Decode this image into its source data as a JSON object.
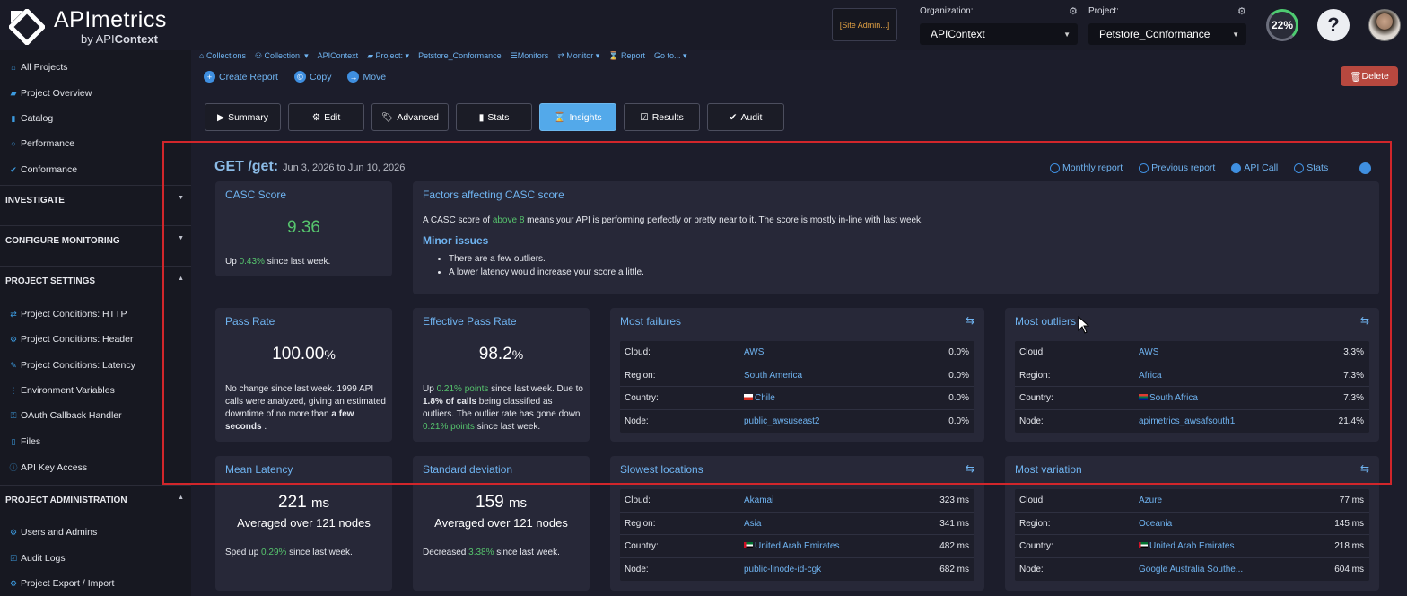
{
  "brand": {
    "name": "APImetrics",
    "sub_prefix": "by API",
    "sub_bold": "Context"
  },
  "topbar": {
    "site_admin": "[Site Admin...]",
    "org_label": "Organization:",
    "org_value": "APIContext",
    "project_label": "Project:",
    "project_value": "Petstore_Conformance",
    "score_pct": "22%",
    "help": "?"
  },
  "sidebar": {
    "top_items": [
      {
        "label": "All Projects",
        "icon": "home-icon"
      },
      {
        "label": "Project Overview",
        "icon": "folder-icon"
      },
      {
        "label": "Catalog",
        "icon": "book-icon"
      },
      {
        "label": "Performance",
        "icon": "circle-icon"
      },
      {
        "label": "Conformance",
        "icon": "check-icon"
      }
    ],
    "sections": {
      "investigate": "INVESTIGATE",
      "configure": "CONFIGURE MONITORING",
      "settings": "PROJECT SETTINGS",
      "admin": "PROJECT ADMINISTRATION"
    },
    "settings_items": [
      {
        "label": "Project Conditions: HTTP",
        "icon": "arrows-icon"
      },
      {
        "label": "Project Conditions: Header",
        "icon": "gear-icon"
      },
      {
        "label": "Project Conditions: Latency",
        "icon": "wrench-icon"
      },
      {
        "label": "Environment Variables",
        "icon": "variable-icon"
      },
      {
        "label": "OAuth Callback Handler",
        "icon": "key-icon"
      },
      {
        "label": "Files",
        "icon": "file-icon"
      },
      {
        "label": "API Key Access",
        "icon": "info-icon"
      }
    ],
    "admin_items": [
      {
        "label": "Users and Admins",
        "icon": "gear-icon"
      },
      {
        "label": "Audit Logs",
        "icon": "checkbox-icon"
      },
      {
        "label": "Project Export / Import",
        "icon": "gear-icon"
      }
    ]
  },
  "breadcrumbs": [
    "Collections",
    "Collection: ▾",
    "APIContext",
    "Project: ▾",
    "Petstore_Conformance",
    "Monitors",
    "Monitor ▾",
    "Report",
    "Go to... ▾"
  ],
  "actions": {
    "create": "Create Report",
    "copy": "Copy",
    "move": "Move",
    "delete": "Delete"
  },
  "tabs": [
    {
      "label": "Summary",
      "icon": "▶"
    },
    {
      "label": "Edit",
      "icon": "⚙"
    },
    {
      "label": "Advanced",
      "icon": "🏷"
    },
    {
      "label": "Stats",
      "icon": "▮"
    },
    {
      "label": "Insights",
      "icon": "⌛"
    },
    {
      "label": "Results",
      "icon": "☑"
    },
    {
      "label": "Audit",
      "icon": "✔"
    }
  ],
  "insights": {
    "title": "GET /get:",
    "date_range": "Jun 3, 2026 to Jun 10, 2026",
    "links": [
      "Monthly report",
      "Previous report",
      "API Call",
      "Stats"
    ],
    "casc": {
      "title": "CASC Score",
      "value": "9.36",
      "change_pre": "Up ",
      "change_val": "0.43%",
      "change_post": " since last week."
    },
    "factors": {
      "title": "Factors affecting CASC score",
      "text_pre": "A CASC score of ",
      "text_hl": "above 8",
      "text_post": " means your API is performing perfectly or pretty near to it. The score is mostly in-line with last week.",
      "minor_title": "Minor issues",
      "bullets": [
        "There are a few outliers.",
        "A lower latency would increase your score a little."
      ]
    },
    "pass_rate": {
      "title": "Pass Rate",
      "value": "100.00",
      "unit": "%",
      "text": "No change since last week. 1999 API calls were analyzed, giving an estimated downtime of no more than",
      "text_bold": "a few seconds",
      "text_end": " ."
    },
    "effective": {
      "title": "Effective Pass Rate",
      "value": "98.2",
      "unit": "%",
      "t1": "Up ",
      "t1_hl": "0.21% points",
      "t2": " since last week. Due to ",
      "t2_bold": "1.8% of calls",
      "t3": " being classified as outliers. The outlier rate has gone down ",
      "t3_hl": "0.21% points",
      "t4": " since last week."
    },
    "most_failures": {
      "title": "Most failures",
      "rows": [
        {
          "key": "Cloud:",
          "value": "AWS",
          "pct": "0.0%",
          "flag": ""
        },
        {
          "key": "Region:",
          "value": "South America",
          "pct": "0.0%",
          "flag": ""
        },
        {
          "key": "Country:",
          "value": "Chile",
          "pct": "0.0%",
          "flag": "chile"
        },
        {
          "key": "Node:",
          "value": "public_awsuseast2",
          "pct": "0.0%",
          "flag": ""
        }
      ]
    },
    "most_outliers": {
      "title": "Most outliers",
      "rows": [
        {
          "key": "Cloud:",
          "value": "AWS",
          "pct": "3.3%",
          "flag": ""
        },
        {
          "key": "Region:",
          "value": "Africa",
          "pct": "7.3%",
          "flag": ""
        },
        {
          "key": "Country:",
          "value": "South Africa",
          "pct": "7.3%",
          "flag": "southafrica"
        },
        {
          "key": "Node:",
          "value": "apimetrics_awsafsouth1",
          "pct": "21.4%",
          "flag": ""
        }
      ]
    },
    "mean_latency": {
      "title": "Mean Latency",
      "value": "221",
      "unit": "ms",
      "sub": "Averaged over 121 nodes",
      "change_pre": "Sped up ",
      "change_val": "0.29%",
      "change_post": " since last week."
    },
    "std_dev": {
      "title": "Standard deviation",
      "value": "159",
      "unit": "ms",
      "sub": "Averaged over 121 nodes",
      "change_pre": "Decreased ",
      "change_val": "3.38%",
      "change_post": " since last week."
    },
    "slowest": {
      "title": "Slowest locations",
      "rows": [
        {
          "key": "Cloud:",
          "value": "Akamai",
          "pct": "323 ms",
          "flag": ""
        },
        {
          "key": "Region:",
          "value": "Asia",
          "pct": "341 ms",
          "flag": ""
        },
        {
          "key": "Country:",
          "value": "United Arab Emirates",
          "pct": "482 ms",
          "flag": "uae"
        },
        {
          "key": "Node:",
          "value": "public-linode-id-cgk",
          "pct": "682 ms",
          "flag": ""
        }
      ]
    },
    "variation": {
      "title": "Most variation",
      "rows": [
        {
          "key": "Cloud:",
          "value": "Azure",
          "pct": "77 ms",
          "flag": ""
        },
        {
          "key": "Region:",
          "value": "Oceania",
          "pct": "145 ms",
          "flag": ""
        },
        {
          "key": "Country:",
          "value": "United Arab Emirates",
          "pct": "218 ms",
          "flag": "uae"
        },
        {
          "key": "Node:",
          "value": "Google Australia Southe...",
          "pct": "604 ms",
          "flag": ""
        }
      ]
    }
  },
  "colors": {
    "accent": "#53a9ea",
    "link": "#6fb3f0",
    "positive": "#56c46d",
    "danger": "#b7483f",
    "highlight_box": "#d1262b"
  }
}
